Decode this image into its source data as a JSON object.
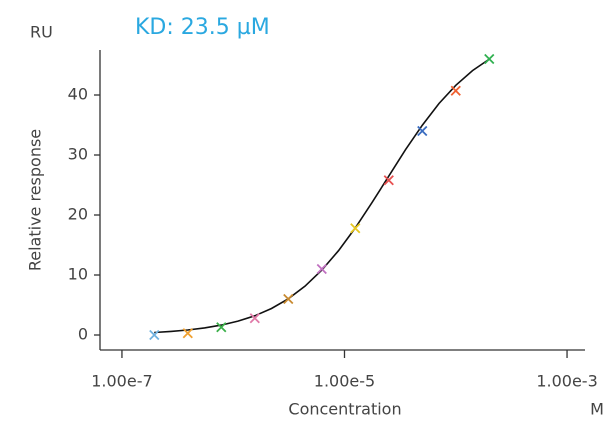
{
  "chart_data": {
    "type": "scatter",
    "title": "KD: 23.5 µM",
    "y_unit": "RU",
    "x_unit": "M",
    "x_label": "Concentration",
    "y_label": "Relative response",
    "xscale": "log",
    "series": [
      {
        "name": null,
        "colors": [
          "#6fb2e0",
          "#f0a030",
          "#3cb04a",
          "#e07aa8",
          "#c88a30",
          "#c070c0",
          "#e8c820",
          "#e85050",
          "#3a6cc0",
          "#f06030",
          "#30b050"
        ],
        "x": [
          1.953125e-07,
          3.90625e-07,
          7.8125e-07,
          1.5625e-06,
          3.125e-06,
          6.25e-06,
          1.25e-05,
          2.5e-05,
          5e-05,
          0.0001,
          0.0002
        ],
        "values": [
          0,
          0.3,
          1.3,
          2.8,
          6,
          11,
          17.8,
          25.8,
          34,
          40.7,
          46
        ]
      }
    ],
    "fit": {
      "x": [
        1.95e-07,
        2.76e-07,
        3.9e-07,
        5.52e-07,
        7.81e-07,
        1.105e-06,
        1.5625e-06,
        2.21e-06,
        3.125e-06,
        4.42e-06,
        6.25e-06,
        8.84e-06,
        1.25e-05,
        1.768e-05,
        2.5e-05,
        3.536e-05,
        5e-05,
        7.07e-05,
        0.0001,
        0.0001414,
        0.0002
      ],
      "values": [
        0.42,
        0.6,
        0.84,
        1.18,
        1.65,
        2.31,
        3.2,
        4.42,
        6.03,
        8.14,
        10.81,
        14.05,
        17.85,
        22.07,
        26.49,
        30.88,
        34.97,
        38.58,
        41.62,
        44.07,
        45.99
      ]
    },
    "xlim": [
      6.35e-08,
      0.00145
    ],
    "xticks": [
      {
        "value": 1e-07,
        "label": "1.00e-7"
      },
      {
        "value": 1e-05,
        "label": "1.00e-5"
      },
      {
        "value": 0.001,
        "label": "1.00e-3"
      }
    ],
    "ylim": [
      -2.5,
      47.5
    ],
    "yticks": [
      0,
      10,
      20,
      30,
      40
    ]
  }
}
